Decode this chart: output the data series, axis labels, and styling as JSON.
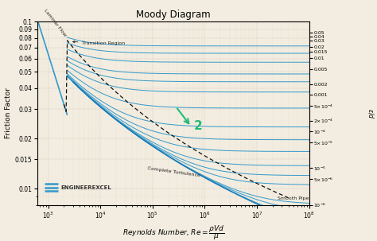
{
  "title": "Moody Diagram",
  "xlabel": "Reynolds Number, $Re = \\dfrac{\\rho V d}{\\mu}$",
  "ylabel_left": "Friction Factor",
  "ylabel_right": "Relative Pipe Roughness\n$\\varepsilon/d$",
  "background_color": "#f2ede0",
  "grid_major_color": "#c8a0a0",
  "grid_minor_color": "#ddc0b0",
  "line_color": "#3399cc",
  "smooth_line_color": "#1a7ab5",
  "dashed_color": "#111111",
  "relative_roughness_values": [
    0.05,
    0.04,
    0.03,
    0.02,
    0.015,
    0.01,
    0.005,
    0.002,
    0.001,
    0.0005,
    0.0002,
    0.0001,
    5e-05,
    1e-05,
    5e-06,
    1e-06
  ],
  "right_axis_ticks": [
    0.05,
    0.04,
    0.03,
    0.02,
    0.015,
    0.01,
    0.005,
    0.002,
    0.001,
    0.0005,
    0.0002,
    0.0001,
    5e-05,
    1e-05,
    5e-06,
    1e-06
  ],
  "right_axis_labels": [
    "0.05",
    "0.04",
    "0.03",
    "0.02",
    "0.015",
    "0.01",
    "0.005",
    "0.002",
    "0.001",
    "$5{\\times}10^{-4}$",
    "$2{\\times}10^{-4}$",
    "$10^{-4}$",
    "$5{\\times}10^{-5}$",
    "$10^{-5}$",
    "$5{\\times}10^{-6}$",
    "$10^{-6}$"
  ],
  "yticks": [
    0.01,
    0.015,
    0.02,
    0.03,
    0.04,
    0.05,
    0.06,
    0.07,
    0.08,
    0.09,
    0.1
  ],
  "ytick_labels": [
    "0.01",
    "0.015",
    "0.02",
    "0.03",
    "0.04",
    "0.05",
    "0.06",
    "0.07",
    "0.08",
    "0.09",
    "0.1"
  ],
  "xticks": [
    1000.0,
    10000.0,
    100000.0,
    1000000.0,
    10000000.0,
    100000000.0
  ],
  "annotation_laminar": "Laminar Flow",
  "annotation_transition": "Transition Region",
  "annotation_complete": "Complete Turbulence",
  "annotation_smooth": "Smooth Pipe",
  "logo_text": "ENGINEEREXCEL",
  "arrow_color": "#22bb77",
  "arrow_number": "2",
  "xlim": [
    630.0,
    100000000.0
  ],
  "ylim": [
    0.008,
    0.1
  ]
}
